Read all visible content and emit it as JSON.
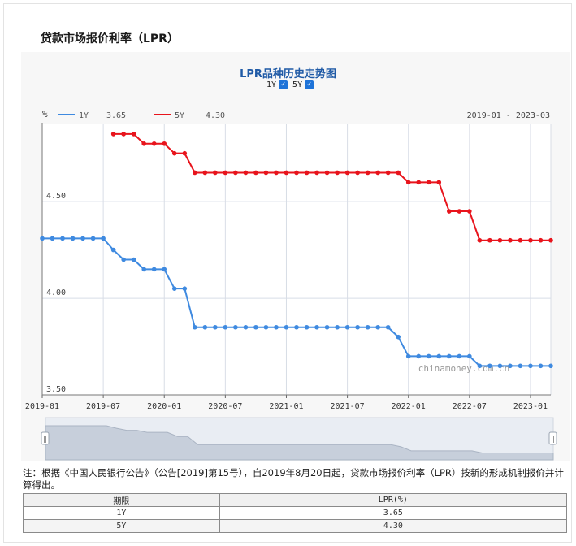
{
  "page": {
    "title": "贷款市场报价利率（LPR）"
  },
  "chart_data": {
    "type": "line",
    "title": "LPR品种历史走势图",
    "unit_label": "%",
    "date_range": "2019-01 - 2023-03",
    "toggles": [
      {
        "label": "1Y",
        "checked": true
      },
      {
        "label": "5Y",
        "checked": true
      }
    ],
    "ylim": [
      3.5,
      4.9
    ],
    "yticks": [
      "4.50",
      "4.00",
      "3.50"
    ],
    "xticks": [
      "2019-01",
      "2019-07",
      "2020-01",
      "2020-07",
      "2021-01",
      "2021-07",
      "2022-01",
      "2022-07",
      "2023-01"
    ],
    "watermark": "chinamoney.com.cn",
    "legend_placement": "top-left",
    "grid": true,
    "series": [
      {
        "name": "1Y",
        "latest": "3.65",
        "color": "#3f8ae0",
        "points": [
          [
            "2019-01",
            4.31
          ],
          [
            "2019-02",
            4.31
          ],
          [
            "2019-03",
            4.31
          ],
          [
            "2019-04",
            4.31
          ],
          [
            "2019-05",
            4.31
          ],
          [
            "2019-06",
            4.31
          ],
          [
            "2019-07",
            4.31
          ],
          [
            "2019-08",
            4.25
          ],
          [
            "2019-09",
            4.2
          ],
          [
            "2019-10",
            4.2
          ],
          [
            "2019-11",
            4.15
          ],
          [
            "2019-12",
            4.15
          ],
          [
            "2020-01",
            4.15
          ],
          [
            "2020-02",
            4.05
          ],
          [
            "2020-03",
            4.05
          ],
          [
            "2020-04",
            3.85
          ],
          [
            "2020-05",
            3.85
          ],
          [
            "2020-06",
            3.85
          ],
          [
            "2020-07",
            3.85
          ],
          [
            "2020-08",
            3.85
          ],
          [
            "2020-09",
            3.85
          ],
          [
            "2020-10",
            3.85
          ],
          [
            "2020-11",
            3.85
          ],
          [
            "2020-12",
            3.85
          ],
          [
            "2021-01",
            3.85
          ],
          [
            "2021-02",
            3.85
          ],
          [
            "2021-03",
            3.85
          ],
          [
            "2021-04",
            3.85
          ],
          [
            "2021-05",
            3.85
          ],
          [
            "2021-06",
            3.85
          ],
          [
            "2021-07",
            3.85
          ],
          [
            "2021-08",
            3.85
          ],
          [
            "2021-09",
            3.85
          ],
          [
            "2021-10",
            3.85
          ],
          [
            "2021-11",
            3.85
          ],
          [
            "2021-12",
            3.8
          ],
          [
            "2022-01",
            3.7
          ],
          [
            "2022-02",
            3.7
          ],
          [
            "2022-03",
            3.7
          ],
          [
            "2022-04",
            3.7
          ],
          [
            "2022-05",
            3.7
          ],
          [
            "2022-06",
            3.7
          ],
          [
            "2022-07",
            3.7
          ],
          [
            "2022-08",
            3.65
          ],
          [
            "2022-09",
            3.65
          ],
          [
            "2022-10",
            3.65
          ],
          [
            "2022-11",
            3.65
          ],
          [
            "2022-12",
            3.65
          ],
          [
            "2023-01",
            3.65
          ],
          [
            "2023-02",
            3.65
          ],
          [
            "2023-03",
            3.65
          ]
        ]
      },
      {
        "name": "5Y",
        "latest": "4.30",
        "color": "#e8141c",
        "points": [
          [
            "2019-08",
            4.85
          ],
          [
            "2019-09",
            4.85
          ],
          [
            "2019-10",
            4.85
          ],
          [
            "2019-11",
            4.8
          ],
          [
            "2019-12",
            4.8
          ],
          [
            "2020-01",
            4.8
          ],
          [
            "2020-02",
            4.75
          ],
          [
            "2020-03",
            4.75
          ],
          [
            "2020-04",
            4.65
          ],
          [
            "2020-05",
            4.65
          ],
          [
            "2020-06",
            4.65
          ],
          [
            "2020-07",
            4.65
          ],
          [
            "2020-08",
            4.65
          ],
          [
            "2020-09",
            4.65
          ],
          [
            "2020-10",
            4.65
          ],
          [
            "2020-11",
            4.65
          ],
          [
            "2020-12",
            4.65
          ],
          [
            "2021-01",
            4.65
          ],
          [
            "2021-02",
            4.65
          ],
          [
            "2021-03",
            4.65
          ],
          [
            "2021-04",
            4.65
          ],
          [
            "2021-05",
            4.65
          ],
          [
            "2021-06",
            4.65
          ],
          [
            "2021-07",
            4.65
          ],
          [
            "2021-08",
            4.65
          ],
          [
            "2021-09",
            4.65
          ],
          [
            "2021-10",
            4.65
          ],
          [
            "2021-11",
            4.65
          ],
          [
            "2021-12",
            4.65
          ],
          [
            "2022-01",
            4.6
          ],
          [
            "2022-02",
            4.6
          ],
          [
            "2022-03",
            4.6
          ],
          [
            "2022-04",
            4.6
          ],
          [
            "2022-05",
            4.45
          ],
          [
            "2022-06",
            4.45
          ],
          [
            "2022-07",
            4.45
          ],
          [
            "2022-08",
            4.3
          ],
          [
            "2022-09",
            4.3
          ],
          [
            "2022-10",
            4.3
          ],
          [
            "2022-11",
            4.3
          ],
          [
            "2022-12",
            4.3
          ],
          [
            "2023-01",
            4.3
          ],
          [
            "2023-02",
            4.3
          ],
          [
            "2023-03",
            4.3
          ]
        ]
      }
    ]
  },
  "note": "注：根据《中国人民银行公告》（公告[2019]第15号），自2019年8月20日起，贷款市场报价利率（LPR）按新的形成机制报价并计算得出。",
  "table": {
    "headers": [
      "期限",
      "LPR(%)"
    ],
    "rows": [
      [
        "1Y",
        "3.65"
      ],
      [
        "5Y",
        "4.30"
      ]
    ]
  }
}
